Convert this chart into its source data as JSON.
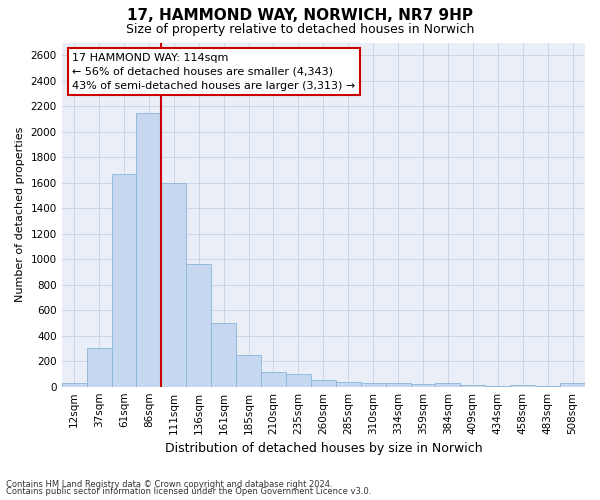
{
  "title_line1": "17, HAMMOND WAY, NORWICH, NR7 9HP",
  "title_line2": "Size of property relative to detached houses in Norwich",
  "xlabel": "Distribution of detached houses by size in Norwich",
  "ylabel": "Number of detached properties",
  "bar_color": "#c5d8ef",
  "bar_edge_color": "#8ab4d8",
  "categories": [
    "12sqm",
    "37sqm",
    "61sqm",
    "86sqm",
    "111sqm",
    "136sqm",
    "161sqm",
    "185sqm",
    "210sqm",
    "235sqm",
    "260sqm",
    "285sqm",
    "310sqm",
    "334sqm",
    "359sqm",
    "384sqm",
    "409sqm",
    "434sqm",
    "458sqm",
    "483sqm",
    "508sqm"
  ],
  "values": [
    25,
    300,
    1670,
    2150,
    1595,
    960,
    500,
    250,
    115,
    100,
    50,
    40,
    30,
    30,
    20,
    25,
    15,
    5,
    15,
    5,
    25
  ],
  "vline_index": 4,
  "annotation_text_line1": "17 HAMMOND WAY: 114sqm",
  "annotation_text_line2": "← 56% of detached houses are smaller (4,343)",
  "annotation_text_line3": "43% of semi-detached houses are larger (3,313) →",
  "annotation_box_facecolor": "#ffffff",
  "annotation_box_edgecolor": "#cc0000",
  "vline_color": "#cc0000",
  "ylim": [
    0,
    2700
  ],
  "yticks": [
    0,
    200,
    400,
    600,
    800,
    1000,
    1200,
    1400,
    1600,
    1800,
    2000,
    2200,
    2400,
    2600
  ],
  "grid_color": "#ccd6e8",
  "background_color": "#eaeff7",
  "title1_fontsize": 11,
  "title2_fontsize": 9,
  "ylabel_fontsize": 8,
  "xlabel_fontsize": 9,
  "tick_fontsize": 7.5,
  "footnote_line1": "Contains HM Land Registry data © Crown copyright and database right 2024.",
  "footnote_line2": "Contains public sector information licensed under the Open Government Licence v3.0."
}
